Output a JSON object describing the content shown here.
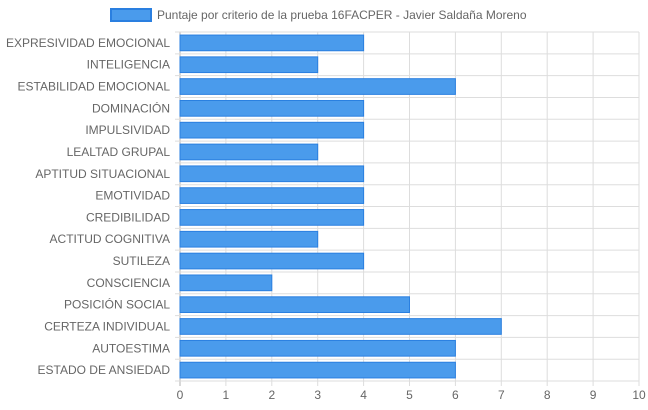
{
  "chart_data": {
    "type": "bar",
    "orientation": "horizontal",
    "categories": [
      "EXPRESIVIDAD EMOCIONAL",
      "INTELIGENCIA",
      "ESTABILIDAD EMOCIONAL",
      "DOMINACIÓN",
      "IMPULSIVIDAD",
      "LEALTAD GRUPAL",
      "APTITUD SITUACIONAL",
      "EMOTIVIDAD",
      "CREDIBILIDAD",
      "ACTITUD COGNITIVA",
      "SUTILEZA",
      "CONSCIENCIA",
      "POSICIÓN SOCIAL",
      "CERTEZA INDIVIDUAL",
      "AUTOESTIMA",
      "ESTADO DE ANSIEDAD"
    ],
    "series": [
      {
        "name": "Puntaje por criterio de la prueba 16FACPER - Javier Saldaña Moreno",
        "values": [
          4,
          3,
          6,
          4,
          4,
          3,
          4,
          4,
          4,
          3,
          4,
          2,
          5,
          7,
          6,
          6
        ]
      }
    ],
    "xlim": [
      0,
      10
    ],
    "xticks": [
      "0",
      "1",
      "2",
      "3",
      "4",
      "5",
      "6",
      "7",
      "8",
      "9",
      "10"
    ],
    "grid": true,
    "legend_position": "top",
    "colors": {
      "bar_fill": "#4a9bec",
      "bar_border": "#2a7fe0",
      "grid": "#dddddd",
      "text": "#666666"
    }
  }
}
